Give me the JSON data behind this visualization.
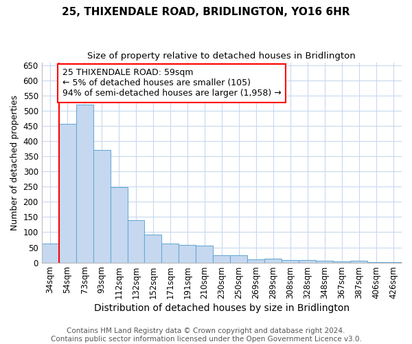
{
  "title": "25, THIXENDALE ROAD, BRIDLINGTON, YO16 6HR",
  "subtitle": "Size of property relative to detached houses in Bridlington",
  "xlabel": "Distribution of detached houses by size in Bridlington",
  "ylabel": "Number of detached properties",
  "categories": [
    "34sqm",
    "54sqm",
    "73sqm",
    "93sqm",
    "112sqm",
    "132sqm",
    "152sqm",
    "171sqm",
    "191sqm",
    "210sqm",
    "230sqm",
    "250sqm",
    "269sqm",
    "289sqm",
    "308sqm",
    "328sqm",
    "348sqm",
    "367sqm",
    "387sqm",
    "406sqm",
    "426sqm"
  ],
  "values": [
    62,
    458,
    520,
    370,
    248,
    140,
    93,
    62,
    58,
    55,
    25,
    25,
    10,
    12,
    7,
    8,
    5,
    3,
    5,
    2,
    2
  ],
  "bar_color": "#c5d8f0",
  "bar_edge_color": "#6aaad4",
  "grid_color": "#c8d8ee",
  "background_color": "#ffffff",
  "plot_bg_color": "#ffffff",
  "annotation_box_text": "25 THIXENDALE ROAD: 59sqm\n← 5% of detached houses are smaller (105)\n94% of semi-detached houses are larger (1,958) →",
  "annotation_box_color": "white",
  "annotation_box_edge_color": "red",
  "vline_color": "red",
  "ylim": [
    0,
    660
  ],
  "yticks": [
    0,
    50,
    100,
    150,
    200,
    250,
    300,
    350,
    400,
    450,
    500,
    550,
    600,
    650
  ],
  "footer_text": "Contains HM Land Registry data © Crown copyright and database right 2024.\nContains public sector information licensed under the Open Government Licence v3.0.",
  "title_fontsize": 11,
  "subtitle_fontsize": 9.5,
  "xlabel_fontsize": 10,
  "ylabel_fontsize": 9,
  "tick_fontsize": 8.5,
  "annotation_fontsize": 9,
  "footer_fontsize": 7.5
}
